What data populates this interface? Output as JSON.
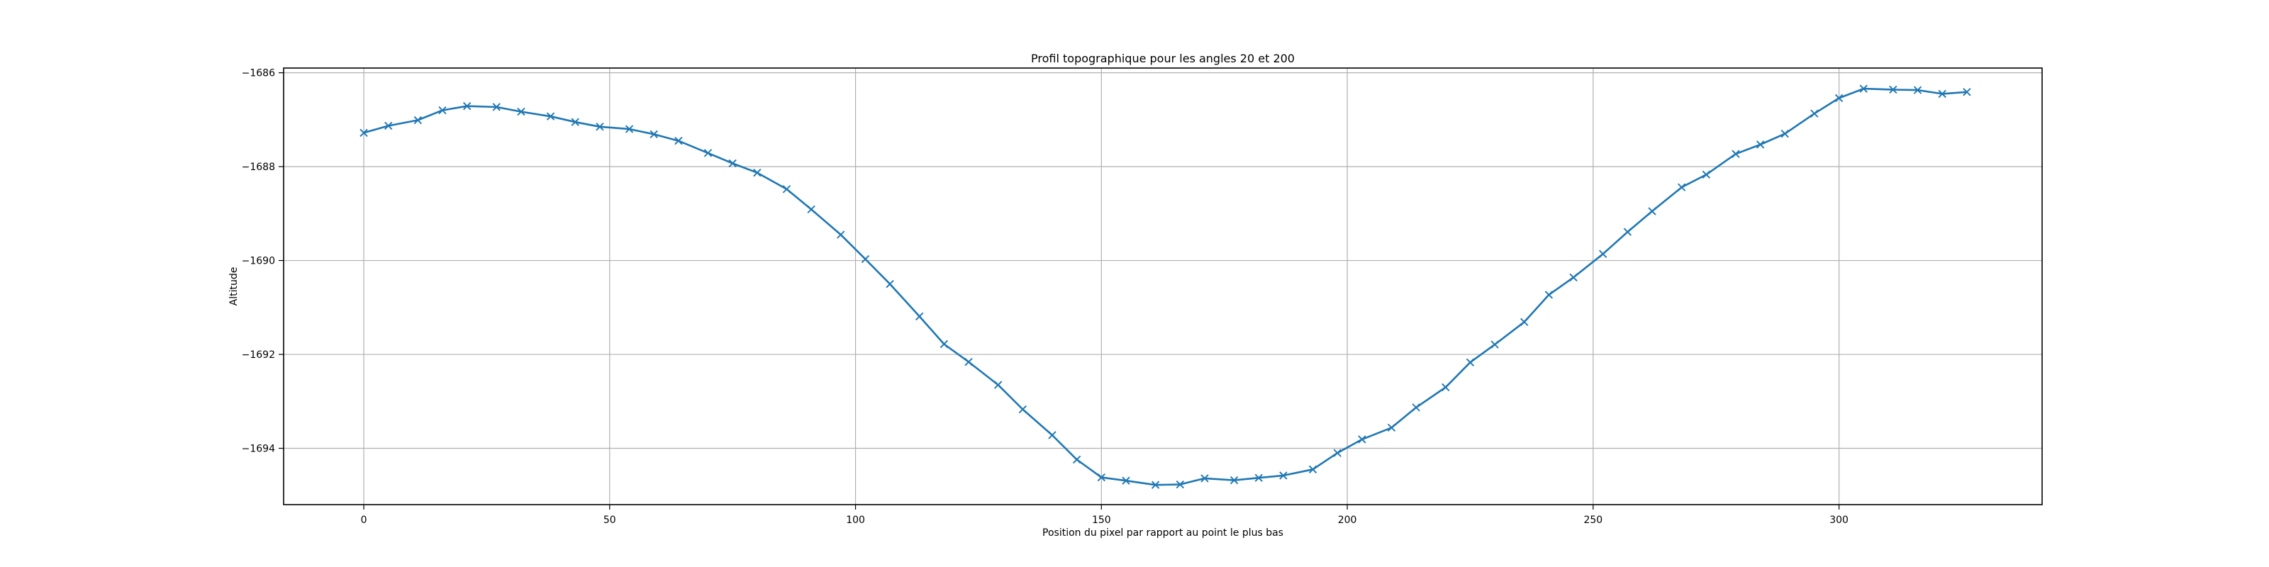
{
  "chart_data": {
    "type": "line",
    "title": "Profil topographique pour les angles 20 et 200",
    "xlabel": "Position du pixel par rapport au point le plus bas",
    "ylabel": "Altitude",
    "xlim": [
      -16.3,
      341.3
    ],
    "ylim": [
      -1695.2,
      -1685.9
    ],
    "xticks": [
      0,
      50,
      100,
      150,
      200,
      250,
      300
    ],
    "yticks": [
      -1694,
      -1692,
      -1690,
      -1688,
      -1686
    ],
    "xtick_labels": [
      "0",
      "50",
      "100",
      "150",
      "200",
      "250",
      "300"
    ],
    "ytick_labels": [
      "−1694",
      "−1692",
      "−1690",
      "−1688",
      "−1686"
    ],
    "grid": true,
    "marker": "x",
    "colors": {
      "series": "#1f77b4"
    },
    "series": [
      {
        "x": [
          0,
          5,
          11,
          16,
          21,
          27,
          32,
          38,
          43,
          48,
          54,
          59,
          64,
          70,
          75,
          80,
          86,
          91,
          97,
          102,
          107,
          113,
          118,
          123,
          129,
          134,
          140,
          145,
          150,
          155,
          161,
          166,
          171,
          177,
          182,
          187,
          193,
          198,
          203,
          209,
          214,
          220,
          225,
          230,
          236,
          241,
          246,
          252,
          257,
          262,
          268,
          273,
          279,
          284,
          289,
          295,
          300,
          305,
          311,
          316,
          321,
          326
        ],
        "y": [
          -1687.28,
          -1687.13,
          -1687.01,
          -1686.8,
          -1686.71,
          -1686.73,
          -1686.83,
          -1686.93,
          -1687.05,
          -1687.15,
          -1687.2,
          -1687.31,
          -1687.45,
          -1687.71,
          -1687.93,
          -1688.13,
          -1688.48,
          -1688.91,
          -1689.45,
          -1689.97,
          -1690.5,
          -1691.19,
          -1691.78,
          -1692.16,
          -1692.65,
          -1693.17,
          -1693.72,
          -1694.24,
          -1694.62,
          -1694.69,
          -1694.78,
          -1694.77,
          -1694.64,
          -1694.68,
          -1694.63,
          -1694.58,
          -1694.45,
          -1694.1,
          -1693.81,
          -1693.56,
          -1693.13,
          -1692.7,
          -1692.17,
          -1691.79,
          -1691.31,
          -1690.73,
          -1690.36,
          -1689.86,
          -1689.39,
          -1688.95,
          -1688.44,
          -1688.17,
          -1687.73,
          -1687.53,
          -1687.3,
          -1686.87,
          -1686.54,
          -1686.34,
          -1686.36,
          -1686.37,
          -1686.45,
          -1686.41
        ]
      }
    ]
  }
}
